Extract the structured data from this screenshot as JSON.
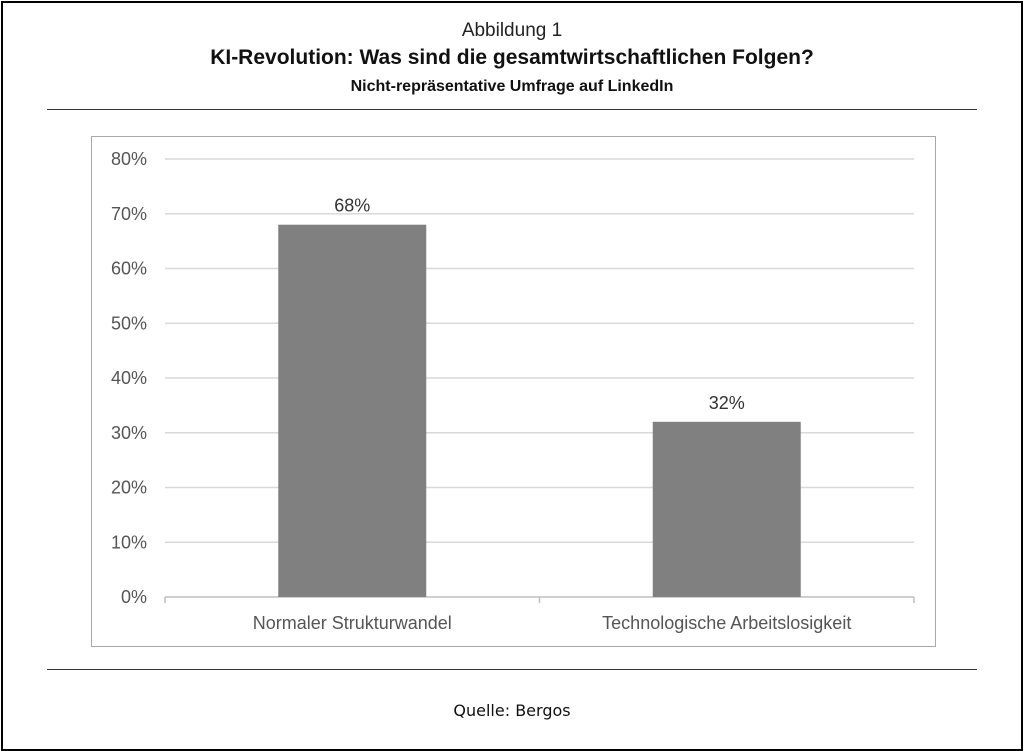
{
  "figure": {
    "label": "Abbildung 1",
    "title": "KI-Revolution: Was sind die gesamtwirtschaftlichen Folgen?",
    "subtitle": "Nicht-repräsentative Umfrage auf LinkedIn",
    "source": "Quelle: Bergos"
  },
  "chart_data": {
    "type": "bar",
    "categories": [
      "Normaler Strukturwandel",
      "Technologische Arbeitslosigkeit"
    ],
    "values": [
      68,
      32
    ],
    "value_labels": [
      "68%",
      "32%"
    ],
    "ylim": [
      0,
      80
    ],
    "yticks": [
      0,
      10,
      20,
      30,
      40,
      50,
      60,
      70,
      80
    ],
    "ytick_labels": [
      "0%",
      "10%",
      "20%",
      "30%",
      "40%",
      "50%",
      "60%",
      "70%",
      "80%"
    ],
    "grid": true,
    "legend": "none",
    "bar_color": "#808080",
    "grid_color": "#d9d9d9"
  }
}
